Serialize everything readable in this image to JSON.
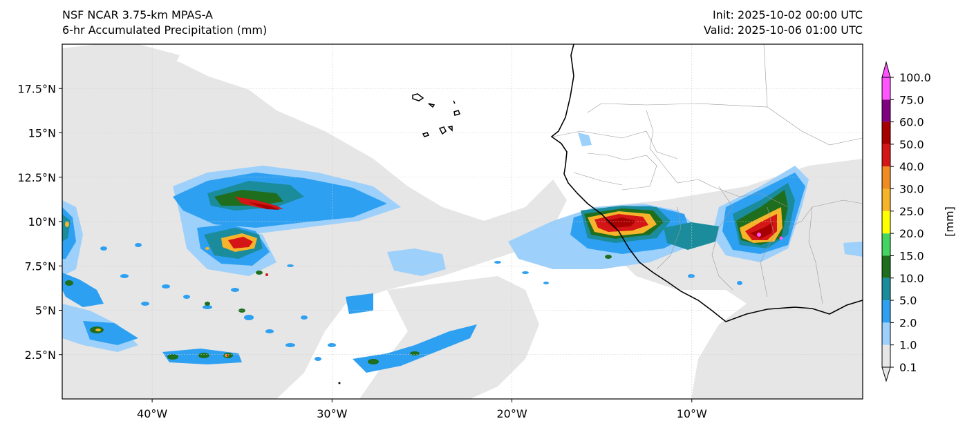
{
  "header": {
    "model": "NSF NCAR 3.75-km MPAS-A",
    "field": "6-hr Accumulated Precipitation (mm)",
    "init": "Init: 2025-10-02 00:00 UTC",
    "valid": "Valid: 2025-10-06 01:00 UTC"
  },
  "map": {
    "lon_range": [
      -45,
      -0.5
    ],
    "lat_range": [
      0,
      20
    ],
    "lat_ticks": [
      {
        "value": 2.5,
        "label": "2.5°N"
      },
      {
        "value": 5,
        "label": "5°N"
      },
      {
        "value": 7.5,
        "label": "7.5°N"
      },
      {
        "value": 10,
        "label": "10°N"
      },
      {
        "value": 12.5,
        "label": "12.5°N"
      },
      {
        "value": 15,
        "label": "15°N"
      },
      {
        "value": 17.5,
        "label": "17.5°N"
      }
    ],
    "lon_ticks": [
      {
        "value": -40,
        "label": "40°W"
      },
      {
        "value": -30,
        "label": "30°W"
      },
      {
        "value": -20,
        "label": "20°W"
      },
      {
        "value": -10,
        "label": "10°W"
      }
    ]
  },
  "colorbar": {
    "unit_label": "[mm]",
    "levels": [
      "0.1",
      "1.0",
      "2.0",
      "5.0",
      "10.0",
      "15.0",
      "20.0",
      "25.0",
      "30.0",
      "40.0",
      "50.0",
      "60.0",
      "75.0",
      "100.0"
    ],
    "colors": [
      "#e6e6e6",
      "#9dd0fa",
      "#2ea0f2",
      "#1a8c9c",
      "#1e6e1e",
      "#44d460",
      "#ffff00",
      "#f6b42a",
      "#f08c22",
      "#d41616",
      "#a80000",
      "#800080",
      "#ff55ff"
    ]
  }
}
